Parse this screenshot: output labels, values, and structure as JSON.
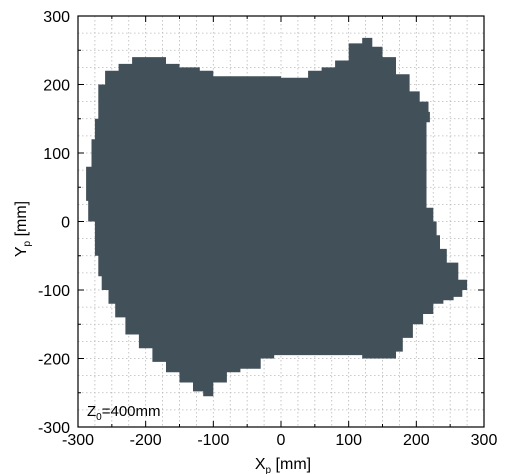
{
  "chart_data": {
    "type": "area",
    "xlabel": {
      "main": "X",
      "sub": "p",
      "unit": " [mm]"
    },
    "ylabel": {
      "main": "Y",
      "sub": "p",
      "unit": " [mm]"
    },
    "xlim": [
      -300,
      300
    ],
    "ylim": [
      -300,
      300
    ],
    "xticks": [
      -300,
      -200,
      -100,
      0,
      100,
      200,
      300
    ],
    "yticks": [
      -300,
      -200,
      -100,
      0,
      100,
      200,
      300
    ],
    "grid": true,
    "annotation": {
      "main": "Z",
      "sub": "0",
      "rest": "=400mm"
    },
    "fill_color": "#425059",
    "region_outline": [
      [
        -270,
        200
      ],
      [
        -260,
        220
      ],
      [
        -240,
        230
      ],
      [
        -220,
        240
      ],
      [
        -180,
        240
      ],
      [
        -170,
        230
      ],
      [
        -150,
        225
      ],
      [
        -120,
        220
      ],
      [
        -100,
        212
      ],
      [
        -80,
        212
      ],
      [
        -60,
        212
      ],
      [
        -20,
        212
      ],
      [
        0,
        210
      ],
      [
        20,
        210
      ],
      [
        40,
        220
      ],
      [
        60,
        225
      ],
      [
        80,
        235
      ],
      [
        100,
        260
      ],
      [
        120,
        268
      ],
      [
        135,
        255
      ],
      [
        150,
        240
      ],
      [
        170,
        215
      ],
      [
        190,
        190
      ],
      [
        205,
        175
      ],
      [
        218,
        160
      ],
      [
        220,
        145
      ],
      [
        215,
        100
      ],
      [
        215,
        60
      ],
      [
        215,
        20
      ],
      [
        225,
        0
      ],
      [
        230,
        -20
      ],
      [
        235,
        -40
      ],
      [
        245,
        -60
      ],
      [
        262,
        -85
      ],
      [
        275,
        -100
      ],
      [
        268,
        -110
      ],
      [
        255,
        -115
      ],
      [
        240,
        -120
      ],
      [
        225,
        -135
      ],
      [
        210,
        -150
      ],
      [
        195,
        -170
      ],
      [
        180,
        -190
      ],
      [
        170,
        -200
      ],
      [
        150,
        -200
      ],
      [
        120,
        -195
      ],
      [
        60,
        -195
      ],
      [
        20,
        -195
      ],
      [
        -10,
        -200
      ],
      [
        -30,
        -215
      ],
      [
        -60,
        -220
      ],
      [
        -80,
        -235
      ],
      [
        -100,
        -255
      ],
      [
        -115,
        -248
      ],
      [
        -130,
        -235
      ],
      [
        -150,
        -220
      ],
      [
        -170,
        -205
      ],
      [
        -190,
        -185
      ],
      [
        -210,
        -165
      ],
      [
        -230,
        -140
      ],
      [
        -245,
        -120
      ],
      [
        -255,
        -100
      ],
      [
        -265,
        -80
      ],
      [
        -270,
        -50
      ],
      [
        -275,
        0
      ],
      [
        -285,
        30
      ],
      [
        -288,
        80
      ],
      [
        -280,
        120
      ],
      [
        -275,
        150
      ],
      [
        -270,
        180
      ]
    ]
  }
}
